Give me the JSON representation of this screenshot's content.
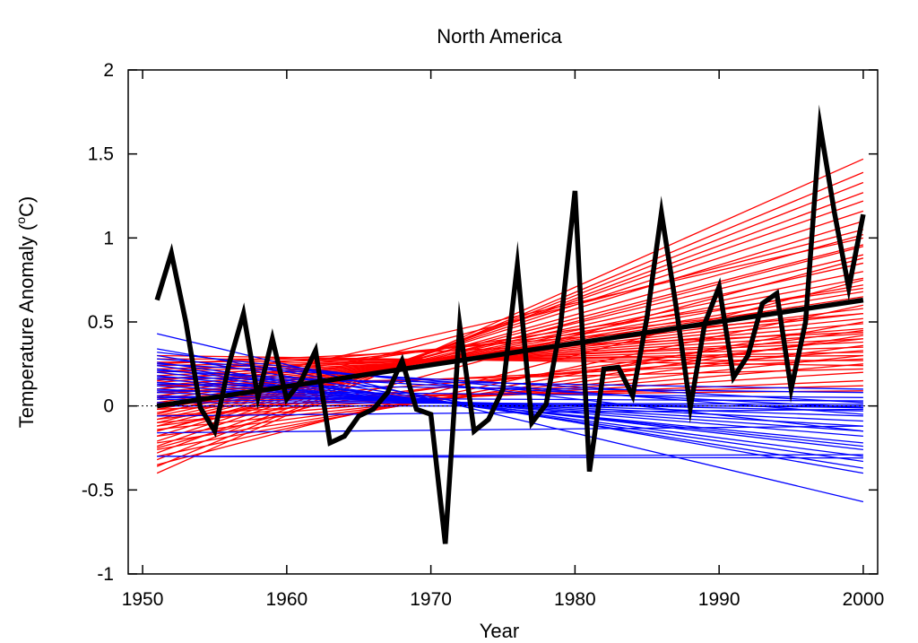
{
  "chart_data": {
    "type": "line",
    "title": "North America",
    "xlabel": "Year",
    "ylabel_main": "Temperature Anomaly (",
    "ylabel_sup": "o",
    "ylabel_tail": "C)",
    "xlim": [
      1949,
      2001
    ],
    "ylim": [
      -1,
      2
    ],
    "x_ticks": [
      1950,
      1960,
      1970,
      1980,
      1990,
      2000
    ],
    "y_ticks": [
      -1,
      -0.5,
      0,
      0.5,
      1,
      1.5,
      2
    ],
    "y_tick_labels": [
      "-1",
      "-0.5",
      "0",
      "0.5",
      "1",
      "1.5",
      "2"
    ],
    "grid": false,
    "legend": "none",
    "colors": {
      "anomaly": "#000000",
      "warming_trends": "#ff0000",
      "cooling_trends": "#0000ff"
    },
    "zero_line": {
      "y": 0,
      "style": "dotted"
    },
    "trend_x_range": [
      1951,
      2000
    ],
    "observed_anomaly": {
      "x": [
        1951,
        1952,
        1953,
        1954,
        1955,
        1956,
        1957,
        1958,
        1959,
        1960,
        1961,
        1962,
        1963,
        1964,
        1965,
        1966,
        1967,
        1968,
        1969,
        1970,
        1971,
        1972,
        1973,
        1974,
        1975,
        1976,
        1977,
        1978,
        1979,
        1980,
        1981,
        1982,
        1983,
        1984,
        1985,
        1986,
        1987,
        1988,
        1989,
        1990,
        1991,
        1992,
        1993,
        1994,
        1995,
        1996,
        1997,
        1998,
        1999,
        2000
      ],
      "y": [
        0.63,
        0.91,
        0.5,
        -0.01,
        -0.15,
        0.25,
        0.55,
        0.05,
        0.4,
        0.04,
        0.15,
        0.33,
        -0.22,
        -0.18,
        -0.06,
        -0.02,
        0.08,
        0.27,
        -0.02,
        -0.05,
        -0.82,
        0.48,
        -0.15,
        -0.08,
        0.1,
        0.84,
        -0.1,
        0.01,
        0.48,
        1.28,
        -0.39,
        0.22,
        0.23,
        0.06,
        0.53,
        1.15,
        0.6,
        -0.01,
        0.49,
        0.71,
        0.17,
        0.3,
        0.61,
        0.67,
        0.1,
        0.5,
        1.67,
        1.15,
        0.7,
        1.14
      ]
    },
    "mean_trend": {
      "x": [
        1951,
        2000
      ],
      "y": [
        0.0,
        0.63
      ]
    },
    "warming_trends": [
      {
        "start": -0.4,
        "end": 1.47
      },
      {
        "start": -0.36,
        "end": 1.39
      },
      {
        "start": -0.32,
        "end": 1.33
      },
      {
        "start": -0.28,
        "end": 1.27
      },
      {
        "start": -0.24,
        "end": 1.22
      },
      {
        "start": -0.21,
        "end": 1.16
      },
      {
        "start": -0.18,
        "end": 1.1
      },
      {
        "start": -0.15,
        "end": 1.02
      },
      {
        "start": -0.12,
        "end": 0.96
      },
      {
        "start": -0.1,
        "end": 0.9
      },
      {
        "start": -0.08,
        "end": 0.85
      },
      {
        "start": -0.06,
        "end": 0.8
      },
      {
        "start": -0.04,
        "end": 0.76
      },
      {
        "start": -0.02,
        "end": 0.72
      },
      {
        "start": 0.0,
        "end": 0.68
      },
      {
        "start": 0.02,
        "end": 0.65
      },
      {
        "start": 0.04,
        "end": 0.62
      },
      {
        "start": 0.06,
        "end": 0.58
      },
      {
        "start": 0.08,
        "end": 0.55
      },
      {
        "start": 0.1,
        "end": 0.52
      },
      {
        "start": 0.12,
        "end": 0.49
      },
      {
        "start": 0.14,
        "end": 0.46
      },
      {
        "start": 0.16,
        "end": 0.43
      },
      {
        "start": 0.18,
        "end": 0.4
      },
      {
        "start": 0.2,
        "end": 0.38
      },
      {
        "start": 0.22,
        "end": 0.35
      },
      {
        "start": 0.24,
        "end": 0.32
      },
      {
        "start": 0.26,
        "end": 0.3
      },
      {
        "start": 0.28,
        "end": 0.27
      },
      {
        "start": 0.3,
        "end": 0.24
      },
      {
        "start": -0.3,
        "end": 0.6
      },
      {
        "start": -0.26,
        "end": 0.5
      },
      {
        "start": -0.22,
        "end": 0.42
      },
      {
        "start": -0.18,
        "end": 0.36
      },
      {
        "start": -0.14,
        "end": 0.3
      },
      {
        "start": -0.1,
        "end": 0.25
      },
      {
        "start": -0.06,
        "end": 0.2
      },
      {
        "start": -0.02,
        "end": 0.15
      },
      {
        "start": 0.02,
        "end": 0.12
      },
      {
        "start": 0.05,
        "end": 0.09
      },
      {
        "start": -0.35,
        "end": 0.75
      },
      {
        "start": -0.25,
        "end": 0.88
      },
      {
        "start": -0.15,
        "end": 0.95
      },
      {
        "start": -0.05,
        "end": 1.05
      },
      {
        "start": 0.05,
        "end": 1.0
      },
      {
        "start": 0.1,
        "end": 0.7
      },
      {
        "start": 0.15,
        "end": 0.62
      },
      {
        "start": 0.2,
        "end": 0.55
      },
      {
        "start": -0.12,
        "end": 0.45
      },
      {
        "start": -0.08,
        "end": 0.4
      },
      {
        "start": 0.0,
        "end": 0.33
      },
      {
        "start": 0.08,
        "end": 0.28
      },
      {
        "start": 0.12,
        "end": 0.22
      },
      {
        "start": 0.25,
        "end": 0.44
      }
    ],
    "cooling_trends": [
      {
        "start": 0.43,
        "end": -0.57
      },
      {
        "start": 0.34,
        "end": -0.4
      },
      {
        "start": 0.3,
        "end": -0.37
      },
      {
        "start": 0.26,
        "end": -0.33
      },
      {
        "start": 0.24,
        "end": -0.3
      },
      {
        "start": 0.22,
        "end": -0.26
      },
      {
        "start": 0.2,
        "end": -0.24
      },
      {
        "start": 0.18,
        "end": -0.22
      },
      {
        "start": 0.16,
        "end": -0.18
      },
      {
        "start": 0.14,
        "end": -0.15
      },
      {
        "start": 0.12,
        "end": -0.12
      },
      {
        "start": 0.1,
        "end": -0.09
      },
      {
        "start": 0.08,
        "end": -0.06
      },
      {
        "start": 0.06,
        "end": -0.03
      },
      {
        "start": 0.04,
        "end": -0.01
      },
      {
        "start": 0.02,
        "end": 0.01
      },
      {
        "start": -0.3,
        "end": -0.31
      },
      {
        "start": -0.3,
        "end": -0.29
      },
      {
        "start": -0.16,
        "end": -0.12
      },
      {
        "start": -0.06,
        "end": -0.02
      },
      {
        "start": 0.0,
        "end": 0.0
      },
      {
        "start": 0.05,
        "end": 0.03
      },
      {
        "start": 0.09,
        "end": 0.05
      },
      {
        "start": 0.13,
        "end": 0.08
      },
      {
        "start": 0.17,
        "end": 0.1
      },
      {
        "start": 0.21,
        "end": -0.01
      },
      {
        "start": 0.25,
        "end": 0.02
      },
      {
        "start": 0.28,
        "end": -0.05
      },
      {
        "start": 0.32,
        "end": -0.15
      }
    ]
  }
}
